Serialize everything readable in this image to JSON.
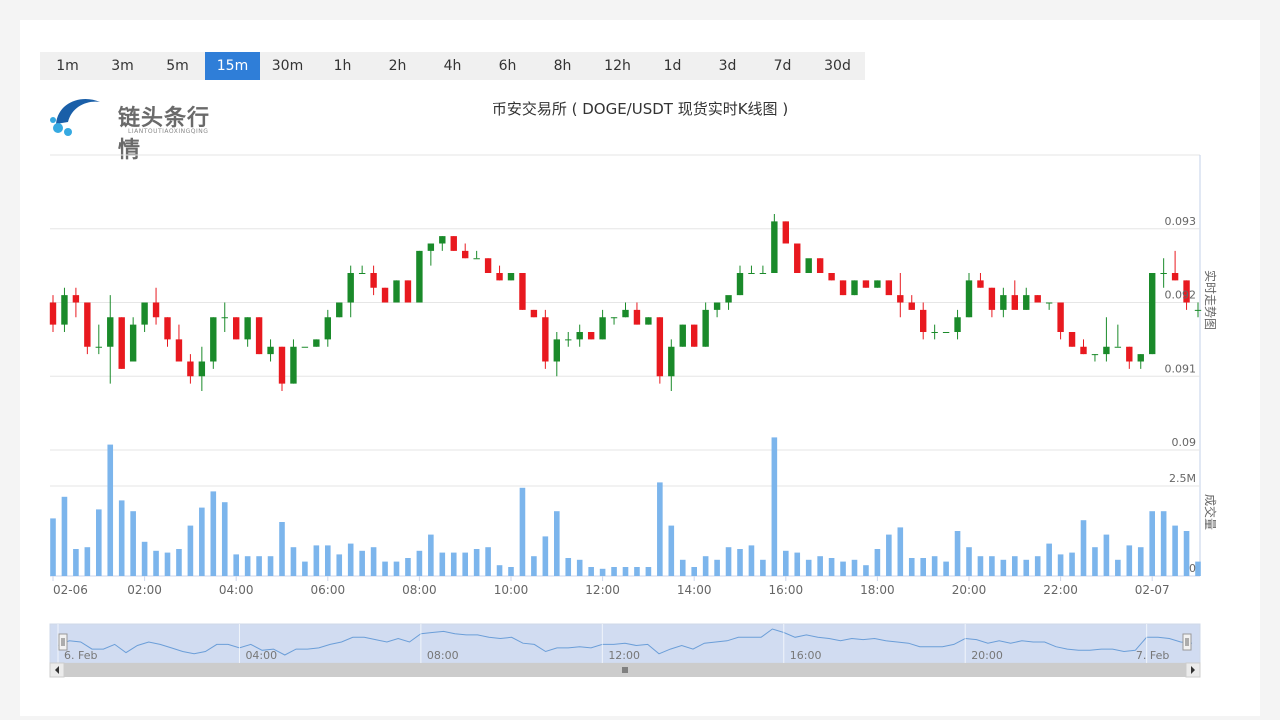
{
  "logo": {
    "text": "链头条行情",
    "sub": "LIANTOUTIAOXINGQING",
    "colors": [
      "#1a5fa8",
      "#36a9e1"
    ]
  },
  "intervals": [
    {
      "label": "1m"
    },
    {
      "label": "3m"
    },
    {
      "label": "5m"
    },
    {
      "label": "15m",
      "active": true
    },
    {
      "label": "30m"
    },
    {
      "label": "1h"
    },
    {
      "label": "2h"
    },
    {
      "label": "4h"
    },
    {
      "label": "6h"
    },
    {
      "label": "8h"
    },
    {
      "label": "12h"
    },
    {
      "label": "1d"
    },
    {
      "label": "3d"
    },
    {
      "label": "7d"
    },
    {
      "label": "30d"
    }
  ],
  "chart_data": {
    "type": "candlestick",
    "title": "币安交易所 ( DOGE/USDT 现货实时K线图 )",
    "colors": {
      "up": "#1a8a2a",
      "down": "#e8191f",
      "volume": "#7cb5ec",
      "navigator_fill": "#c9d6ef",
      "navigator_line": "#6b9ed8"
    },
    "price_axis": {
      "label": "实时走势图",
      "ticks": [
        "0.093",
        "0.092",
        "0.091",
        "0.09"
      ],
      "tick_values": [
        0.093,
        0.092,
        0.091,
        0.09
      ],
      "range": [
        0.09,
        0.094
      ]
    },
    "volume_axis": {
      "label": "成交量",
      "ticks": [
        "2.5M",
        "0"
      ],
      "tick_values": [
        2500000,
        0
      ],
      "range": [
        0,
        4000000
      ]
    },
    "x_axis": {
      "labels": [
        "02-06",
        "02:00",
        "04:00",
        "06:00",
        "08:00",
        "10:00",
        "12:00",
        "14:00",
        "16:00",
        "18:00",
        "20:00",
        "22:00",
        "02-07"
      ],
      "label_candle_index": [
        0,
        8,
        16,
        24,
        32,
        40,
        48,
        56,
        64,
        72,
        80,
        88,
        96
      ]
    },
    "navigator": {
      "labels": [
        "6. Feb",
        "04:00",
        "08:00",
        "12:00",
        "16:00",
        "20:00",
        "7. Feb"
      ],
      "label_candle_index": [
        0,
        16,
        32,
        48,
        64,
        80,
        96
      ]
    },
    "candles": [
      [
        0.092,
        0.0921,
        0.0916,
        0.0917,
        1600000
      ],
      [
        0.0917,
        0.0922,
        0.0916,
        0.0921,
        2200000
      ],
      [
        0.0921,
        0.0922,
        0.0918,
        0.092,
        750000
      ],
      [
        0.092,
        0.092,
        0.0913,
        0.0914,
        800000
      ],
      [
        0.0914,
        0.0917,
        0.0913,
        0.0914,
        1850000
      ],
      [
        0.0914,
        0.0921,
        0.0909,
        0.0918,
        3650000
      ],
      [
        0.0918,
        0.0918,
        0.0911,
        0.0911,
        2100000
      ],
      [
        0.0912,
        0.0918,
        0.0912,
        0.0917,
        1800000
      ],
      [
        0.0917,
        0.092,
        0.0916,
        0.092,
        950000
      ],
      [
        0.092,
        0.0922,
        0.0917,
        0.0918,
        700000
      ],
      [
        0.0918,
        0.0918,
        0.0914,
        0.0915,
        650000
      ],
      [
        0.0915,
        0.0917,
        0.0912,
        0.0912,
        750000
      ],
      [
        0.0912,
        0.0913,
        0.0909,
        0.091,
        1400000
      ],
      [
        0.091,
        0.0914,
        0.0908,
        0.0912,
        1900000
      ],
      [
        0.0912,
        0.0918,
        0.0911,
        0.0918,
        2350000
      ],
      [
        0.0918,
        0.092,
        0.0916,
        0.0918,
        2050000
      ],
      [
        0.0918,
        0.0918,
        0.0915,
        0.0915,
        600000
      ],
      [
        0.0915,
        0.0918,
        0.0914,
        0.0918,
        550000
      ],
      [
        0.0918,
        0.0918,
        0.0913,
        0.0913,
        550000
      ],
      [
        0.0913,
        0.0915,
        0.0912,
        0.0914,
        550000
      ],
      [
        0.0914,
        0.0914,
        0.0908,
        0.0909,
        1500000
      ],
      [
        0.0909,
        0.0915,
        0.0909,
        0.0914,
        800000
      ],
      [
        0.0914,
        0.0914,
        0.0914,
        0.0914,
        400000
      ],
      [
        0.0914,
        0.0915,
        0.0914,
        0.0915,
        850000
      ],
      [
        0.0915,
        0.0919,
        0.0914,
        0.0918,
        850000
      ],
      [
        0.0918,
        0.092,
        0.0918,
        0.092,
        600000
      ],
      [
        0.092,
        0.0925,
        0.0918,
        0.0924,
        900000
      ],
      [
        0.0924,
        0.0925,
        0.0924,
        0.0924,
        700000
      ],
      [
        0.0924,
        0.0925,
        0.0921,
        0.0922,
        800000
      ],
      [
        0.0922,
        0.0922,
        0.092,
        0.092,
        400000
      ],
      [
        0.092,
        0.0923,
        0.092,
        0.0923,
        400000
      ],
      [
        0.0923,
        0.0923,
        0.092,
        0.092,
        500000
      ],
      [
        0.092,
        0.0927,
        0.092,
        0.0927,
        700000
      ],
      [
        0.0927,
        0.0928,
        0.0925,
        0.0928,
        1150000
      ],
      [
        0.0928,
        0.0929,
        0.0927,
        0.0929,
        650000
      ],
      [
        0.0929,
        0.0929,
        0.0927,
        0.0927,
        650000
      ],
      [
        0.0927,
        0.0928,
        0.0926,
        0.0926,
        650000
      ],
      [
        0.0926,
        0.0927,
        0.0926,
        0.0926,
        750000
      ],
      [
        0.0926,
        0.0926,
        0.0924,
        0.0924,
        800000
      ],
      [
        0.0924,
        0.0925,
        0.0923,
        0.0923,
        300000
      ],
      [
        0.0923,
        0.0924,
        0.0923,
        0.0924,
        250000
      ],
      [
        0.0924,
        0.0924,
        0.0919,
        0.0919,
        2450000
      ],
      [
        0.0919,
        0.0919,
        0.0918,
        0.0918,
        550000
      ],
      [
        0.0918,
        0.0919,
        0.0911,
        0.0912,
        1100000
      ],
      [
        0.0912,
        0.0916,
        0.091,
        0.0915,
        1800000
      ],
      [
        0.0915,
        0.0916,
        0.0914,
        0.0915,
        500000
      ],
      [
        0.0915,
        0.0917,
        0.0914,
        0.0916,
        450000
      ],
      [
        0.0916,
        0.0916,
        0.0915,
        0.0915,
        250000
      ],
      [
        0.0915,
        0.0919,
        0.0915,
        0.0918,
        200000
      ],
      [
        0.0918,
        0.0918,
        0.0917,
        0.0918,
        250000
      ],
      [
        0.0918,
        0.092,
        0.0918,
        0.0919,
        250000
      ],
      [
        0.0919,
        0.092,
        0.0917,
        0.0917,
        250000
      ],
      [
        0.0917,
        0.0918,
        0.0917,
        0.0918,
        250000
      ],
      [
        0.0918,
        0.0918,
        0.0909,
        0.091,
        2600000
      ],
      [
        0.091,
        0.0915,
        0.0908,
        0.0914,
        1400000
      ],
      [
        0.0914,
        0.0917,
        0.0914,
        0.0917,
        450000
      ],
      [
        0.0917,
        0.0917,
        0.0914,
        0.0914,
        250000
      ],
      [
        0.0914,
        0.092,
        0.0914,
        0.0919,
        550000
      ],
      [
        0.0919,
        0.092,
        0.0918,
        0.092,
        450000
      ],
      [
        0.092,
        0.092,
        0.0919,
        0.0921,
        800000
      ],
      [
        0.0921,
        0.0925,
        0.0921,
        0.0924,
        750000
      ],
      [
        0.0924,
        0.0925,
        0.0924,
        0.0924,
        850000
      ],
      [
        0.0924,
        0.0925,
        0.0924,
        0.0924,
        450000
      ],
      [
        0.0924,
        0.0932,
        0.0924,
        0.0931,
        3850000
      ],
      [
        0.0931,
        0.0931,
        0.0928,
        0.0928,
        700000
      ],
      [
        0.0928,
        0.0928,
        0.0924,
        0.0924,
        650000
      ],
      [
        0.0924,
        0.0925,
        0.0924,
        0.0926,
        450000
      ],
      [
        0.0926,
        0.0926,
        0.0924,
        0.0924,
        550000
      ],
      [
        0.0924,
        0.0924,
        0.0923,
        0.0923,
        500000
      ],
      [
        0.0923,
        0.0923,
        0.0921,
        0.0921,
        400000
      ],
      [
        0.0921,
        0.0923,
        0.0921,
        0.0923,
        450000
      ],
      [
        0.0923,
        0.0923,
        0.0922,
        0.0922,
        300000
      ],
      [
        0.0922,
        0.0923,
        0.0922,
        0.0923,
        750000
      ],
      [
        0.0923,
        0.0923,
        0.0922,
        0.0921,
        1150000
      ],
      [
        0.0921,
        0.0924,
        0.0918,
        0.092,
        1350000
      ],
      [
        0.092,
        0.0921,
        0.0919,
        0.0919,
        500000
      ],
      [
        0.0919,
        0.092,
        0.0915,
        0.0916,
        500000
      ],
      [
        0.0916,
        0.0917,
        0.0915,
        0.0916,
        550000
      ],
      [
        0.0916,
        0.0916,
        0.0916,
        0.0916,
        400000
      ],
      [
        0.0916,
        0.0919,
        0.0915,
        0.0918,
        1250000
      ],
      [
        0.0918,
        0.0924,
        0.0918,
        0.0923,
        800000
      ],
      [
        0.0923,
        0.0924,
        0.0922,
        0.0922,
        550000
      ],
      [
        0.0922,
        0.0922,
        0.0918,
        0.0919,
        550000
      ],
      [
        0.0919,
        0.0922,
        0.0918,
        0.0921,
        450000
      ],
      [
        0.0921,
        0.0923,
        0.092,
        0.0919,
        550000
      ],
      [
        0.0919,
        0.0922,
        0.0919,
        0.0921,
        450000
      ],
      [
        0.0921,
        0.0921,
        0.092,
        0.092,
        550000
      ],
      [
        0.092,
        0.092,
        0.0919,
        0.092,
        900000
      ],
      [
        0.092,
        0.092,
        0.0915,
        0.0916,
        600000
      ],
      [
        0.0916,
        0.0916,
        0.0914,
        0.0914,
        650000
      ],
      [
        0.0914,
        0.0915,
        0.0913,
        0.0913,
        1550000
      ],
      [
        0.0913,
        0.0913,
        0.0912,
        0.0913,
        800000
      ],
      [
        0.0913,
        0.0918,
        0.0912,
        0.0914,
        1150000
      ],
      [
        0.0914,
        0.0917,
        0.0914,
        0.0914,
        450000
      ],
      [
        0.0914,
        0.0914,
        0.0911,
        0.0912,
        850000
      ],
      [
        0.0912,
        0.0913,
        0.0911,
        0.0913,
        800000
      ],
      [
        0.0913,
        0.0924,
        0.0913,
        0.0924,
        1800000
      ],
      [
        0.0924,
        0.0926,
        0.0922,
        0.0924,
        1800000
      ],
      [
        0.0924,
        0.0927,
        0.0923,
        0.0923,
        1400000
      ],
      [
        0.0923,
        0.0923,
        0.0919,
        0.092,
        1250000
      ],
      [
        0.0919,
        0.092,
        0.0918,
        0.0919,
        400000
      ]
    ]
  }
}
